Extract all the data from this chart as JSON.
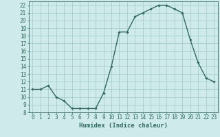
{
  "x": [
    0,
    1,
    2,
    3,
    4,
    5,
    6,
    7,
    8,
    9,
    10,
    11,
    12,
    13,
    14,
    15,
    16,
    17,
    18,
    19,
    20,
    21,
    22,
    23
  ],
  "y": [
    11.0,
    11.0,
    11.5,
    10.0,
    9.5,
    8.5,
    8.5,
    8.5,
    8.5,
    10.5,
    14.0,
    18.5,
    18.5,
    20.5,
    21.0,
    21.5,
    22.0,
    22.0,
    21.5,
    21.0,
    17.5,
    14.5,
    12.5,
    12.0
  ],
  "xlabel": "Humidex (Indice chaleur)",
  "xlim": [
    -0.5,
    23.5
  ],
  "ylim": [
    8,
    22.5
  ],
  "yticks": [
    8,
    9,
    10,
    11,
    12,
    13,
    14,
    15,
    16,
    17,
    18,
    19,
    20,
    21,
    22
  ],
  "xticks": [
    0,
    1,
    2,
    3,
    4,
    5,
    6,
    7,
    8,
    9,
    10,
    11,
    12,
    13,
    14,
    15,
    16,
    17,
    18,
    19,
    20,
    21,
    22,
    23
  ],
  "line_color": "#2e6b5e",
  "marker": "D",
  "marker_size": 1.8,
  "bg_color": "#ceeaea",
  "grid_color": "#9fc8c8",
  "tick_label_fontsize": 5.5,
  "xlabel_fontsize": 6.5,
  "line_width": 1.0
}
